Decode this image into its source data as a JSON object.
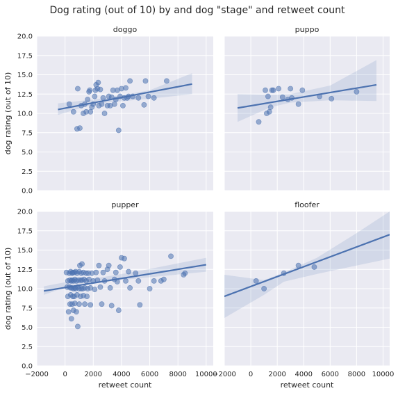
{
  "colors": {
    "panel_bg": "#EAEAF2",
    "grid": "#FFFFFF",
    "points": "#4C72B0",
    "line": "#4C72B0",
    "band": "#4C72B0"
  },
  "chart_data": {
    "type": "scatter",
    "suptitle": "Dog rating (out of 10) by and dog \"stage\" and retweet count",
    "xlabel": "retweet count",
    "ylabel": "dog rating (out of 10)",
    "xlim": [
      -2000,
      10500
    ],
    "ylim": [
      0,
      20
    ],
    "xticks": [
      -2000,
      0,
      2000,
      4000,
      6000,
      8000,
      10000
    ],
    "yticks": [
      0.0,
      2.5,
      5.0,
      7.5,
      10.0,
      12.5,
      15.0,
      17.5,
      20.0
    ],
    "ytick_labels": [
      "0.0",
      "2.5",
      "5.0",
      "7.5",
      "10.0",
      "12.5",
      "15.0",
      "17.5",
      "20.0"
    ],
    "grid": true,
    "panels": [
      {
        "title": "doggo",
        "points": [
          [
            300,
            11.2
          ],
          [
            600,
            10.2
          ],
          [
            850,
            8.0
          ],
          [
            900,
            13.2
          ],
          [
            1050,
            8.1
          ],
          [
            1150,
            11.0
          ],
          [
            1300,
            10.0
          ],
          [
            1400,
            11.2
          ],
          [
            1500,
            10.2
          ],
          [
            1600,
            11.8
          ],
          [
            1700,
            12.8
          ],
          [
            1750,
            13.0
          ],
          [
            1800,
            10.2
          ],
          [
            1900,
            10.8
          ],
          [
            2000,
            11.2
          ],
          [
            2100,
            12.2
          ],
          [
            2150,
            13.0
          ],
          [
            2200,
            13.7
          ],
          [
            2300,
            13.2
          ],
          [
            2350,
            14.0
          ],
          [
            2400,
            11.0
          ],
          [
            2500,
            13.1
          ],
          [
            2600,
            11.2
          ],
          [
            2700,
            12.0
          ],
          [
            2800,
            10.0
          ],
          [
            3000,
            11.0
          ],
          [
            3100,
            12.2
          ],
          [
            3200,
            11.0
          ],
          [
            3300,
            12.1
          ],
          [
            3400,
            13.0
          ],
          [
            3500,
            11.2
          ],
          [
            3600,
            11.8
          ],
          [
            3700,
            13.0
          ],
          [
            3800,
            7.8
          ],
          [
            3900,
            12.2
          ],
          [
            4000,
            13.2
          ],
          [
            4100,
            11.0
          ],
          [
            4200,
            12.0
          ],
          [
            4300,
            13.3
          ],
          [
            4400,
            12.0
          ],
          [
            4500,
            12.2
          ],
          [
            4600,
            14.2
          ],
          [
            4800,
            12.2
          ],
          [
            5200,
            12.0
          ],
          [
            5600,
            11.1
          ],
          [
            5700,
            14.2
          ],
          [
            5900,
            12.2
          ],
          [
            6300,
            12.0
          ],
          [
            7200,
            14.2
          ]
        ],
        "fit": {
          "x": [
            -500,
            9000
          ],
          "y": [
            10.5,
            13.8
          ]
        },
        "band_lo": [
          [
            -500,
            9.8
          ],
          [
            1500,
            10.9
          ],
          [
            3000,
            11.4
          ],
          [
            6000,
            11.9
          ],
          [
            9000,
            12.5
          ]
        ],
        "band_hi": [
          [
            -500,
            11.3
          ],
          [
            1500,
            11.7
          ],
          [
            3000,
            12.0
          ],
          [
            6000,
            13.0
          ],
          [
            9000,
            15.2
          ]
        ]
      },
      {
        "title": "puppo",
        "points": [
          [
            600,
            8.9
          ],
          [
            1100,
            13.0
          ],
          [
            1200,
            10.0
          ],
          [
            1300,
            12.2
          ],
          [
            1400,
            10.2
          ],
          [
            1500,
            10.8
          ],
          [
            1600,
            13.0
          ],
          [
            1700,
            13.0
          ],
          [
            2100,
            13.2
          ],
          [
            2400,
            12.1
          ],
          [
            2800,
            11.8
          ],
          [
            3000,
            13.2
          ],
          [
            3100,
            12.0
          ],
          [
            3600,
            11.2
          ],
          [
            3900,
            13.0
          ],
          [
            5200,
            12.2
          ],
          [
            6100,
            11.9
          ],
          [
            8000,
            12.8
          ]
        ],
        "fit": {
          "x": [
            -1000,
            9500
          ],
          "y": [
            10.7,
            13.7
          ]
        },
        "band_lo": [
          [
            -1000,
            8.9
          ],
          [
            1500,
            10.8
          ],
          [
            3000,
            11.4
          ],
          [
            6000,
            11.7
          ],
          [
            9500,
            11.6
          ]
        ],
        "band_hi": [
          [
            -1000,
            12.5
          ],
          [
            1500,
            12.4
          ],
          [
            3000,
            12.5
          ],
          [
            6000,
            13.6
          ],
          [
            9500,
            16.9
          ]
        ]
      },
      {
        "title": "pupper",
        "points": [
          [
            100,
            12.1
          ],
          [
            150,
            10.2
          ],
          [
            200,
            11.0
          ],
          [
            200,
            9.0
          ],
          [
            250,
            7.0
          ],
          [
            300,
            12.0
          ],
          [
            300,
            10.2
          ],
          [
            350,
            11.1
          ],
          [
            350,
            8.0
          ],
          [
            400,
            12.2
          ],
          [
            400,
            10.1
          ],
          [
            400,
            9.2
          ],
          [
            450,
            11.0
          ],
          [
            450,
            6.1
          ],
          [
            500,
            12.0
          ],
          [
            500,
            11.1
          ],
          [
            500,
            10.1
          ],
          [
            500,
            8.0
          ],
          [
            550,
            12.1
          ],
          [
            550,
            9.0
          ],
          [
            600,
            11.0
          ],
          [
            600,
            10.0
          ],
          [
            600,
            7.2
          ],
          [
            650,
            12.1
          ],
          [
            650,
            9.0
          ],
          [
            700,
            11.2
          ],
          [
            700,
            10.1
          ],
          [
            700,
            8.1
          ],
          [
            750,
            12.2
          ],
          [
            750,
            10.0
          ],
          [
            800,
            11.0
          ],
          [
            800,
            7.0
          ],
          [
            850,
            12.0
          ],
          [
            850,
            9.2
          ],
          [
            900,
            5.1
          ],
          [
            900,
            10.2
          ],
          [
            950,
            11.1
          ],
          [
            1000,
            12.2
          ],
          [
            1000,
            10.0
          ],
          [
            1000,
            8.0
          ],
          [
            1050,
            13.0
          ],
          [
            1100,
            11.1
          ],
          [
            1100,
            9.0
          ],
          [
            1150,
            12.0
          ],
          [
            1150,
            10.0
          ],
          [
            1200,
            11.1
          ],
          [
            1200,
            13.2
          ],
          [
            1250,
            10.0
          ],
          [
            1300,
            12.1
          ],
          [
            1300,
            9.1
          ],
          [
            1350,
            11.2
          ],
          [
            1400,
            10.1
          ],
          [
            1400,
            8.0
          ],
          [
            1500,
            12.0
          ],
          [
            1500,
            11.0
          ],
          [
            1550,
            9.0
          ],
          [
            1600,
            10.0
          ],
          [
            1650,
            12.0
          ],
          [
            1700,
            11.2
          ],
          [
            1800,
            10.1
          ],
          [
            1800,
            7.9
          ],
          [
            1900,
            12.0
          ],
          [
            2000,
            11.0
          ],
          [
            2100,
            9.9
          ],
          [
            2200,
            12.1
          ],
          [
            2300,
            11.1
          ],
          [
            2400,
            13.0
          ],
          [
            2500,
            10.2
          ],
          [
            2600,
            8.0
          ],
          [
            2700,
            12.1
          ],
          [
            2800,
            11.0
          ],
          [
            3000,
            12.5
          ],
          [
            3100,
            13.0
          ],
          [
            3200,
            10.1
          ],
          [
            3300,
            7.8
          ],
          [
            3500,
            11.2
          ],
          [
            3600,
            12.1
          ],
          [
            3700,
            10.9
          ],
          [
            3800,
            7.2
          ],
          [
            3900,
            12.8
          ],
          [
            4000,
            14.0
          ],
          [
            4200,
            13.9
          ],
          [
            4300,
            11.0
          ],
          [
            4500,
            12.2
          ],
          [
            4600,
            10.1
          ],
          [
            5000,
            12.0
          ],
          [
            5200,
            11.0
          ],
          [
            5300,
            7.9
          ],
          [
            6000,
            10.0
          ],
          [
            6300,
            11.0
          ],
          [
            6800,
            11.0
          ],
          [
            7000,
            11.2
          ],
          [
            7500,
            14.2
          ],
          [
            8400,
            11.8
          ],
          [
            8500,
            12.0
          ]
        ],
        "fit": {
          "x": [
            -1500,
            10000
          ],
          "y": [
            9.7,
            13.1
          ]
        },
        "band_lo": [
          [
            -1500,
            9.2
          ],
          [
            500,
            10.5
          ],
          [
            2000,
            10.8
          ],
          [
            5000,
            11.3
          ],
          [
            10000,
            12.2
          ]
        ],
        "band_hi": [
          [
            -1500,
            10.3
          ],
          [
            500,
            11.0
          ],
          [
            2000,
            11.3
          ],
          [
            5000,
            12.2
          ],
          [
            10000,
            14.0
          ]
        ]
      },
      {
        "title": "floofer",
        "points": [
          [
            400,
            11.0
          ],
          [
            1000,
            10.0
          ],
          [
            2500,
            12.0
          ],
          [
            3600,
            13.0
          ],
          [
            4800,
            12.8
          ]
        ],
        "fit": {
          "x": [
            -2000,
            10500
          ],
          "y": [
            9.0,
            17.0
          ]
        },
        "band_lo": [
          [
            -2000,
            6.2
          ],
          [
            1000,
            9.2
          ],
          [
            2500,
            10.9
          ],
          [
            5000,
            11.9
          ],
          [
            8000,
            13.0
          ],
          [
            10500,
            13.9
          ]
        ],
        "band_hi": [
          [
            -2000,
            11.8
          ],
          [
            1000,
            11.1
          ],
          [
            2500,
            12.1
          ],
          [
            5000,
            14.0
          ],
          [
            8000,
            17.2
          ],
          [
            10500,
            20.0
          ]
        ]
      }
    ]
  }
}
